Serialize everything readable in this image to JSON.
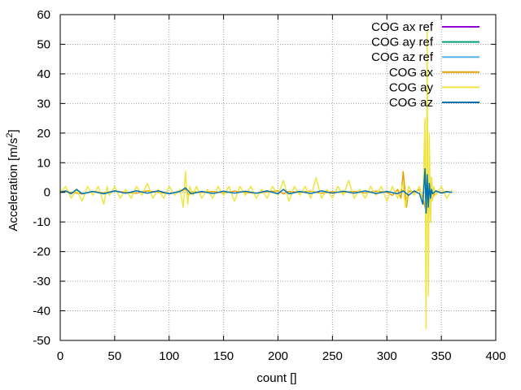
{
  "chart_data": {
    "type": "line",
    "xlabel": "count []",
    "ylabel_main": "Acceleration [m/s",
    "ylabel_sup": "2",
    "ylabel_tail": "]",
    "xlim": [
      0,
      400
    ],
    "ylim": [
      -50,
      60
    ],
    "xticks": [
      0,
      50,
      100,
      150,
      200,
      250,
      300,
      350,
      400
    ],
    "yticks": [
      -50,
      -40,
      -30,
      -20,
      -10,
      0,
      10,
      20,
      30,
      40,
      50,
      60
    ],
    "grid": true,
    "legend_position": "top-right",
    "series": [
      {
        "name": "COG ax ref",
        "color": "#9400d3",
        "values": []
      },
      {
        "name": "COG ay ref",
        "color": "#009e73",
        "values": []
      },
      {
        "name": "COG az ref",
        "color": "#56b4e9",
        "values": []
      },
      {
        "name": "COG ax",
        "color": "#e69f00",
        "x": [
          0,
          10,
          20,
          30,
          40,
          50,
          60,
          70,
          80,
          90,
          100,
          110,
          115,
          118,
          120,
          130,
          140,
          150,
          160,
          170,
          180,
          190,
          200,
          205,
          210,
          220,
          230,
          240,
          250,
          260,
          270,
          280,
          290,
          300,
          305,
          310,
          313,
          315,
          318,
          320,
          325,
          330,
          333,
          335,
          336,
          337,
          338,
          339,
          340,
          341,
          342,
          345,
          350,
          355,
          360
        ],
        "values": [
          0.5,
          0,
          -0.5,
          0.3,
          -0.2,
          0.4,
          0,
          -0.3,
          0.5,
          0,
          -0.4,
          0.3,
          1,
          -1,
          0.2,
          0,
          0.3,
          -0.2,
          0.4,
          0,
          -0.3,
          0.2,
          0.5,
          -0.5,
          0.3,
          0,
          0.4,
          -0.3,
          0.2,
          0,
          0.3,
          -0.2,
          0.4,
          0,
          -1,
          1,
          -2,
          7,
          -5,
          0.5,
          0,
          1,
          -2,
          -5,
          3,
          -3,
          -9,
          11,
          -10,
          5,
          -2,
          0.5,
          0,
          0.3,
          0
        ]
      },
      {
        "name": "COG ay",
        "color": "#f0e442",
        "x": [
          0,
          5,
          10,
          15,
          20,
          25,
          30,
          35,
          40,
          43,
          45,
          50,
          55,
          60,
          65,
          70,
          75,
          80,
          85,
          90,
          95,
          100,
          105,
          110,
          113,
          115,
          117,
          119,
          122,
          125,
          130,
          135,
          140,
          145,
          150,
          155,
          160,
          165,
          170,
          175,
          180,
          185,
          190,
          195,
          200,
          205,
          210,
          215,
          220,
          225,
          230,
          235,
          240,
          245,
          250,
          255,
          260,
          265,
          270,
          275,
          280,
          285,
          290,
          295,
          300,
          305,
          310,
          315,
          317,
          320,
          325,
          330,
          333,
          335,
          336,
          337,
          338,
          339,
          340,
          341,
          342,
          343,
          345,
          350,
          355,
          360
        ],
        "values": [
          0,
          2,
          -2,
          1,
          -3,
          2,
          -1,
          2,
          -4,
          2,
          -1,
          2,
          -2,
          1,
          -2,
          2,
          -1,
          3,
          -2,
          1,
          -2,
          2,
          -1,
          1,
          -5,
          7,
          -4,
          2,
          -1,
          2,
          -2,
          1,
          -2,
          2,
          -1,
          2,
          -3,
          2,
          -1,
          2,
          -2,
          1,
          -2,
          2,
          -1,
          4,
          -3,
          2,
          -1,
          2,
          -2,
          5,
          -2,
          1,
          -2,
          2,
          -1,
          4,
          -2,
          1,
          -2,
          2,
          -1,
          2,
          -3,
          2,
          -2,
          3,
          -5,
          2,
          -1,
          2,
          -4,
          25,
          -46,
          55,
          -35,
          20,
          -10,
          5,
          -3,
          2,
          -1,
          2,
          -2,
          1
        ]
      },
      {
        "name": "COG az",
        "color": "#0072b2",
        "x": [
          0,
          5,
          10,
          15,
          20,
          30,
          40,
          50,
          60,
          70,
          80,
          90,
          100,
          110,
          115,
          120,
          130,
          140,
          150,
          160,
          170,
          180,
          190,
          200,
          205,
          210,
          220,
          230,
          240,
          250,
          260,
          270,
          280,
          290,
          300,
          310,
          315,
          320,
          325,
          330,
          333,
          335,
          336,
          337,
          338,
          339,
          340,
          341,
          342,
          345,
          350,
          355,
          360
        ],
        "values": [
          0,
          0.5,
          -0.5,
          1,
          -0.5,
          0.3,
          -0.5,
          0.5,
          -0.3,
          0.5,
          -0.3,
          0.5,
          -0.5,
          0.3,
          1.5,
          -0.5,
          0.3,
          -0.4,
          0.4,
          -0.3,
          0.4,
          -0.3,
          0.5,
          -0.5,
          1,
          -0.5,
          0.3,
          -0.4,
          0.5,
          -0.3,
          0.4,
          -0.3,
          0.5,
          -0.4,
          0.3,
          -0.5,
          0.5,
          -1,
          0.5,
          -0.5,
          -4,
          8,
          -7,
          6,
          -5,
          3,
          -2,
          1,
          -0.5,
          0.5,
          -0.3,
          0.2,
          0
        ]
      }
    ]
  }
}
